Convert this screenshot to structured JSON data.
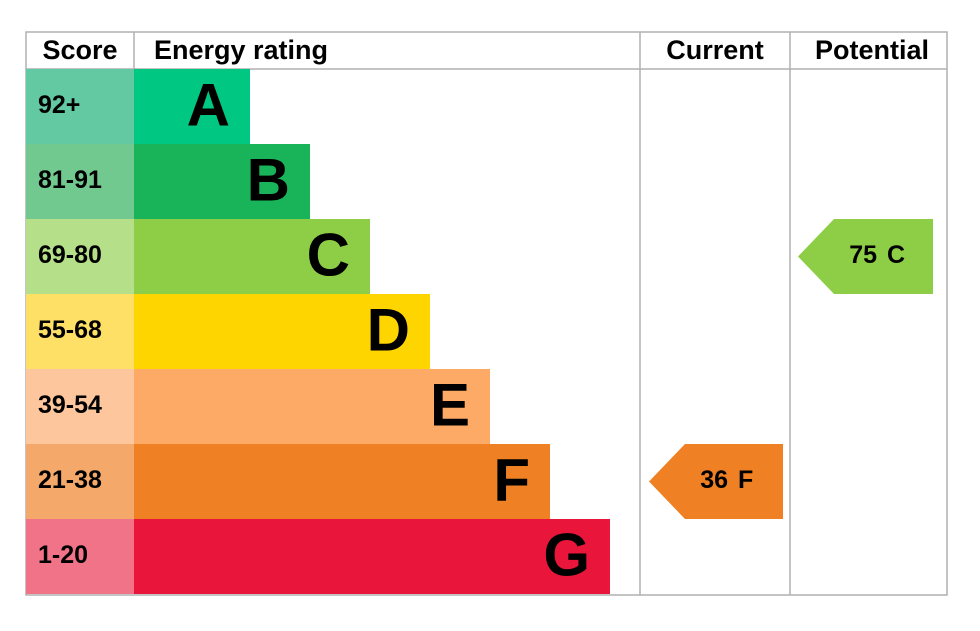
{
  "header": {
    "score": "Score",
    "rating": "Energy rating",
    "current": "Current",
    "potential": "Potential"
  },
  "bands": [
    {
      "score": "92+",
      "letter": "A",
      "color": "#00c781",
      "score_color": "#63c9a3"
    },
    {
      "score": "81-91",
      "letter": "B",
      "color": "#19b459",
      "score_color": "#72c98f"
    },
    {
      "score": "69-80",
      "letter": "C",
      "color": "#8dce46",
      "score_color": "#b5df88"
    },
    {
      "score": "55-68",
      "letter": "D",
      "color": "#ffd500",
      "score_color": "#ffe066"
    },
    {
      "score": "39-54",
      "letter": "E",
      "color": "#fcaa65",
      "score_color": "#fdc69c"
    },
    {
      "score": "21-38",
      "letter": "F",
      "color": "#ef8023",
      "score_color": "#f4a96b"
    },
    {
      "score": "1-20",
      "letter": "G",
      "color": "#e9153b",
      "score_color": "#f07387"
    }
  ],
  "current": {
    "value": 36,
    "letter": "F"
  },
  "potential": {
    "value": 75,
    "letter": "C"
  }
}
